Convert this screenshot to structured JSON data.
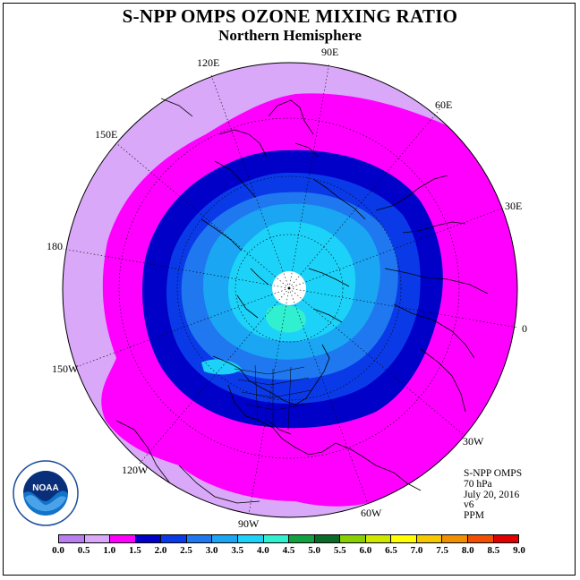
{
  "title": "S-NPP OMPS OZONE MIXING RATIO",
  "subtitle": "Northern Hemisphere",
  "longitude_labels": [
    "90E",
    "60E",
    "30E",
    "0",
    "30W",
    "60W",
    "90W",
    "120W",
    "150W",
    "180",
    "150E",
    "120E"
  ],
  "info": {
    "instrument": "S-NPP OMPS",
    "level": "70 hPa",
    "date": "July 20, 2016",
    "version": "v6",
    "units": "PPM"
  },
  "logo_text": "NOAA",
  "colorbar": {
    "ticks": [
      "0.0",
      "0.5",
      "1.0",
      "1.5",
      "2.0",
      "2.5",
      "3.0",
      "3.5",
      "4.0",
      "4.5",
      "5.0",
      "5.5",
      "6.0",
      "6.5",
      "7.0",
      "7.5",
      "8.0",
      "8.5",
      "9.0"
    ],
    "colors": [
      "#b87ef0",
      "#d9a8f8",
      "#ff00ff",
      "#0000c8",
      "#0a3ae8",
      "#1f78f0",
      "#1aa6f2",
      "#1cd2f8",
      "#30f0d0",
      "#12a040",
      "#0a6a28",
      "#88d000",
      "#d0e800",
      "#ffff00",
      "#f5c800",
      "#f09000",
      "#f05000",
      "#e00000",
      "#8a5030"
    ]
  },
  "colors": {
    "band_0_5": "#d9a8f8",
    "band_1_0": "#ff00ff",
    "band_1_5": "#0000c8",
    "band_2_0": "#0a3ae8",
    "band_2_5": "#1f78f0",
    "band_3_0": "#1aa6f2",
    "band_3_5": "#1cd2f8",
    "band_4_0": "#30f0d0"
  }
}
